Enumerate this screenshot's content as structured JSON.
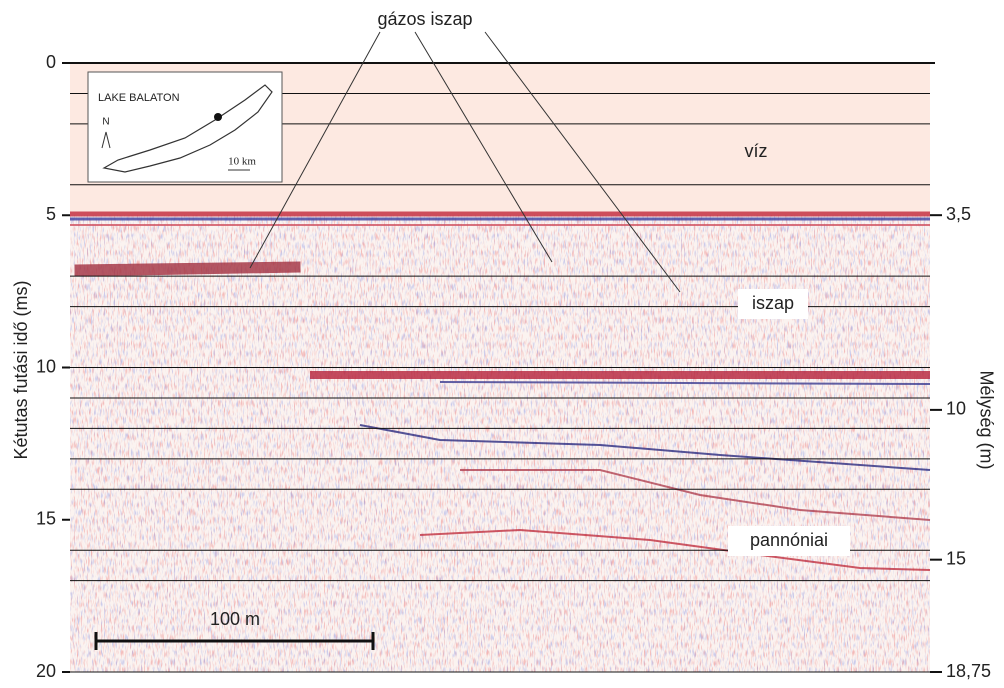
{
  "chart_data": {
    "type": "seismic-profile",
    "ylabel": "Kétutas futási idő (ms)",
    "y2label": "Mélység (m)",
    "ylim": [
      0,
      20
    ],
    "yticks": [
      0,
      5,
      10,
      15,
      20
    ],
    "y2lim": [
      -1.58,
      18.75
    ],
    "y2ticks": [
      {
        "value": 3.5,
        "label": "3,5"
      },
      10,
      15,
      {
        "value": 18.75,
        "label": "18,75"
      }
    ],
    "hlines": [
      0,
      1,
      2,
      4,
      7,
      8,
      10,
      11,
      12,
      13,
      14,
      16,
      17,
      20
    ],
    "annotations": [
      "gázos iszap",
      "víz",
      "iszap",
      "pannóniai"
    ],
    "inset": {
      "title": "LAKE BALATON",
      "north": "N",
      "scale": "10 km"
    },
    "scale_bar": "100 m"
  }
}
